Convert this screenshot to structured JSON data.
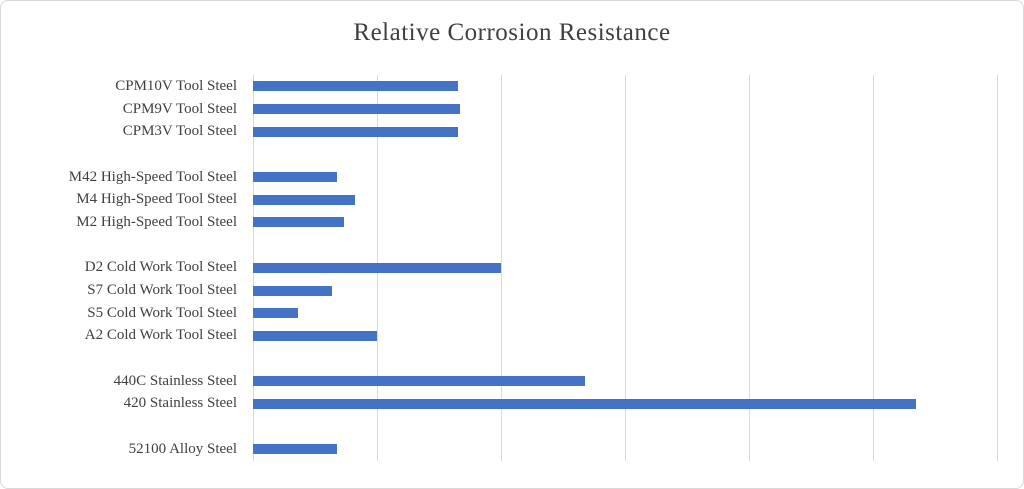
{
  "chart_data": {
    "type": "bar",
    "orientation": "horizontal",
    "title": "Relative Corrosion Resistance",
    "xlabel": "",
    "ylabel": "",
    "xlim": [
      0,
      6
    ],
    "gridlines": [
      0,
      1,
      2,
      3,
      4,
      5,
      6
    ],
    "tick_labels_visible": false,
    "legend_visible": false,
    "bar_color": "#4472C4",
    "gridline_color": "#d9d9d9",
    "text_color": "#404040",
    "categories": [
      "CPM10V Tool Steel",
      "CPM9V Tool Steel",
      "CPM3V Tool Steel",
      "M42 High-Speed Tool Steel",
      "M4 High-Speed Tool Steel",
      "M2 High-Speed Tool Steel",
      "D2 Cold Work Tool Steel",
      "S7 Cold Work Tool Steel",
      "S5 Cold Work Tool Steel",
      "A2 Cold Work Tool Steel",
      "440C Stainless Steel",
      "420 Stainless Steel",
      "52100 Alloy Steel"
    ],
    "values": [
      1.65,
      1.67,
      1.65,
      0.68,
      0.82,
      0.73,
      2.0,
      0.64,
      0.36,
      1.0,
      2.68,
      5.35,
      0.68
    ],
    "group_breaks": [
      3,
      6,
      10,
      12
    ]
  }
}
